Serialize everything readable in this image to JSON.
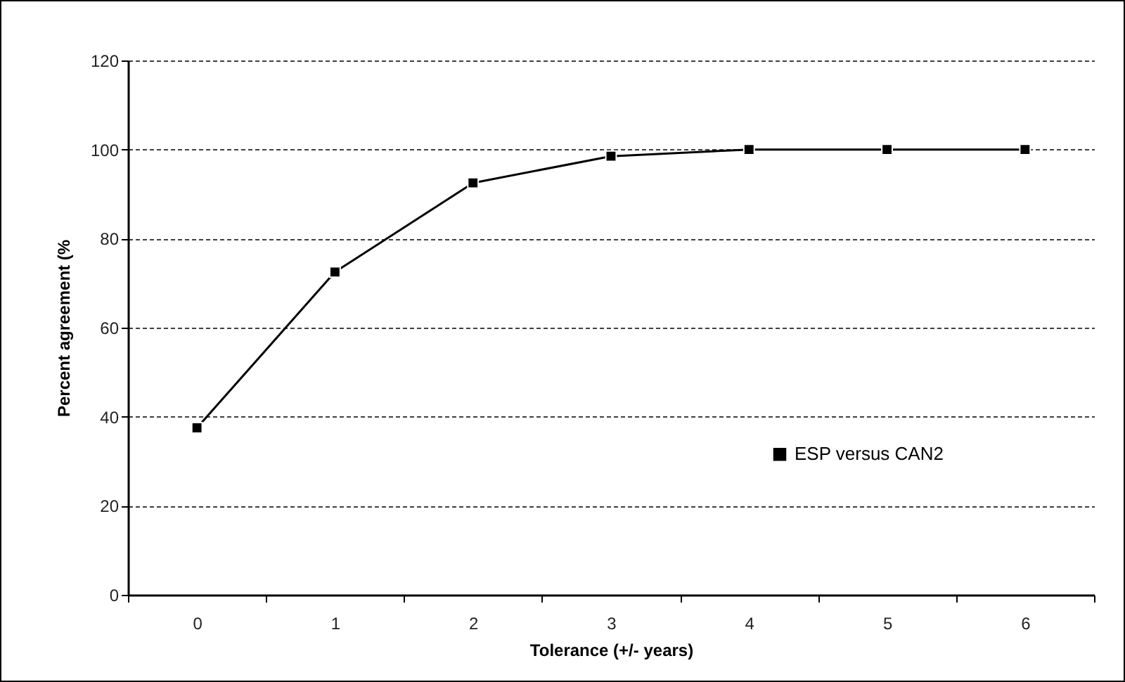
{
  "chart_data": {
    "type": "line",
    "xlabel": "Tolerance (+/- years)",
    "ylabel": "Percent agreement (%",
    "categories": [
      "0",
      "1",
      "2",
      "3",
      "4",
      "5",
      "6"
    ],
    "series": [
      {
        "name": "ESP versus CAN2",
        "color": "#000000",
        "values": [
          37.5,
          72.5,
          92.5,
          98.5,
          100,
          100,
          100
        ]
      }
    ],
    "ylim": [
      0,
      120
    ],
    "yticks": [
      0,
      20,
      40,
      60,
      80,
      100,
      120
    ],
    "grid": "y",
    "legend": "right",
    "marker": "square",
    "line_style": "solid"
  }
}
